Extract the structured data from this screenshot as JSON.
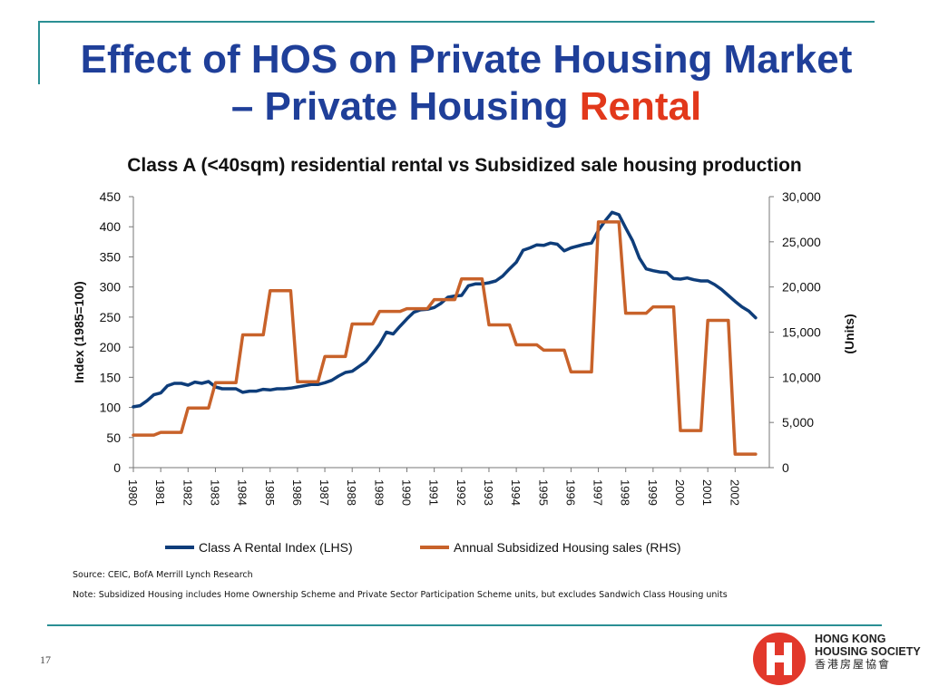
{
  "slide": {
    "title_line1": "Effect of HOS on Private Housing Market",
    "title_line2_prefix": "– Private Housing ",
    "title_line2_accent": "Rental",
    "page_number": "17",
    "source_note": "Source: CEIC, BofA Merrill Lynch Research",
    "footnote": "Note: Subsidized Housing includes Home Ownership Scheme and Private Sector Participation Scheme units, but excludes Sandwich Class Housing units",
    "logo": {
      "name_line1": "HONG KONG",
      "name_line2": "HOUSING SOCIETY",
      "name_chinese": "香港房屋協會",
      "icon": "hong-kong-housing-society-h-logo"
    },
    "colors": {
      "title": "#1f3f99",
      "accent": "#e2381b",
      "rule": "#2a8f94"
    }
  },
  "chart_data": {
    "type": "line",
    "title": "Class A (<40sqm) residential rental vs Subsidized sale housing production",
    "ylabel_left": "Index (1985=100)",
    "ylabel_right": "(Units)",
    "ylim_left": [
      0,
      450
    ],
    "ylim_right": [
      0,
      30000
    ],
    "yticks_left": [
      "0",
      "50",
      "100",
      "150",
      "200",
      "250",
      "300",
      "350",
      "400",
      "450"
    ],
    "yticks_right": [
      "0",
      "5,000",
      "10,000",
      "15,000",
      "20,000",
      "25,000",
      "30,000"
    ],
    "xticks": [
      "1980",
      "1981",
      "1982",
      "1983",
      "1984",
      "1985",
      "1986",
      "1987",
      "1988",
      "1989",
      "1990",
      "1991",
      "1992",
      "1993",
      "1994",
      "1995",
      "1996",
      "1997",
      "1998",
      "1999",
      "2000",
      "2001",
      "2002"
    ],
    "xlim": [
      1980,
      2003.25
    ],
    "grid": false,
    "legend_position": "bottom",
    "series": [
      {
        "name": "Class A Rental Index (LHS)",
        "axis": "left",
        "color": "#0e3d7a",
        "x": [
          1980,
          1980.25,
          1980.5,
          1980.75,
          1981,
          1981.25,
          1981.5,
          1981.75,
          1982,
          1982.25,
          1982.5,
          1982.75,
          1983,
          1983.25,
          1983.5,
          1983.75,
          1984,
          1984.25,
          1984.5,
          1984.75,
          1985,
          1985.25,
          1985.5,
          1985.75,
          1986,
          1986.25,
          1986.5,
          1986.75,
          1987,
          1987.25,
          1987.5,
          1987.75,
          1988,
          1988.25,
          1988.5,
          1988.75,
          1989,
          1989.25,
          1989.5,
          1989.75,
          1990,
          1990.25,
          1990.5,
          1990.75,
          1991,
          1991.25,
          1991.5,
          1991.75,
          1992,
          1992.25,
          1992.5,
          1992.75,
          1993,
          1993.25,
          1993.5,
          1993.75,
          1994,
          1994.25,
          1994.5,
          1994.75,
          1995,
          1995.25,
          1995.5,
          1995.75,
          1996,
          1996.25,
          1996.5,
          1996.75,
          1997,
          1997.25,
          1997.5,
          1997.75,
          1998,
          1998.25,
          1998.5,
          1998.75,
          1999,
          1999.25,
          1999.5,
          1999.75,
          2000,
          2000.25,
          2000.5,
          2000.75,
          2001,
          2001.25,
          2001.5,
          2001.75,
          2002,
          2002.25,
          2002.5,
          2002.75
        ],
        "values": [
          101,
          103,
          111,
          121,
          124,
          136,
          140,
          140,
          137,
          142,
          140,
          143,
          134,
          131,
          131,
          131,
          125,
          127,
          127,
          130,
          129,
          131,
          131,
          132,
          134,
          136,
          138,
          138,
          141,
          145,
          152,
          158,
          160,
          168,
          176,
          190,
          205,
          225,
          222,
          235,
          247,
          258,
          262,
          263,
          266,
          273,
          283,
          285,
          286,
          302,
          305,
          305,
          307,
          310,
          318,
          330,
          341,
          361,
          365,
          370,
          369,
          373,
          371,
          360,
          365,
          368,
          371,
          373,
          394,
          410,
          424,
          420,
          398,
          377,
          348,
          330,
          327,
          325,
          324,
          314,
          313,
          315,
          312,
          310,
          310,
          304,
          296,
          286,
          276,
          267,
          260,
          249
        ]
      },
      {
        "name": "Annual Subsidized Housing sales (RHS)",
        "axis": "right",
        "color": "#c8622a",
        "x": [
          1980,
          1980.75,
          1981,
          1981.75,
          1982,
          1982.75,
          1983,
          1983.75,
          1984,
          1984.75,
          1985,
          1985.75,
          1986,
          1986.75,
          1987,
          1987.75,
          1988,
          1988.75,
          1989,
          1989.75,
          1990,
          1990.75,
          1991,
          1991.75,
          1992,
          1992.75,
          1993,
          1993.75,
          1994,
          1994.75,
          1995,
          1995.75,
          1996,
          1996.75,
          1997,
          1997.75,
          1998,
          1998.75,
          1999,
          1999.75,
          2000,
          2000.75,
          2001,
          2001.75,
          2002,
          2002.75
        ],
        "values": [
          3600,
          3600,
          3900,
          3900,
          6600,
          6600,
          9400,
          9400,
          14700,
          14700,
          19600,
          19600,
          9500,
          9500,
          12300,
          12300,
          15900,
          15900,
          17300,
          17300,
          17600,
          17600,
          18600,
          18600,
          20900,
          20900,
          15800,
          15800,
          13600,
          13600,
          13000,
          13000,
          10600,
          10600,
          27200,
          27200,
          17100,
          17100,
          17800,
          17800,
          4100,
          4100,
          16300,
          16300,
          1500,
          1500
        ]
      }
    ]
  }
}
